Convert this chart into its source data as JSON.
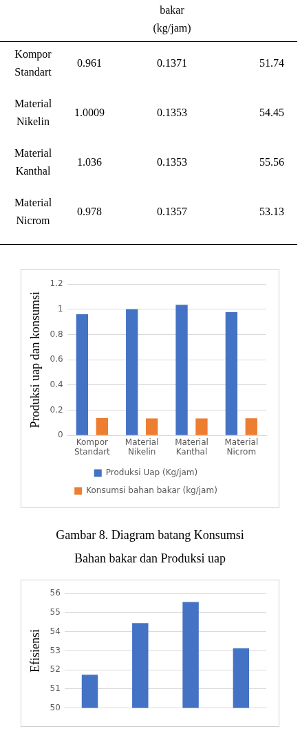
{
  "chart_data": [
    {
      "type": "other",
      "annotations": [
        "bakar\n(kg/jam)",
        "Kompor\nStandart",
        "0.961",
        "0.1371",
        "51.74",
        "Material\nNikelin",
        "1.0009",
        "0.1353",
        "54.45",
        "Material\nKanthal",
        "1.036",
        "0.1353",
        "55.56",
        "Material\nNicrom",
        "0.978",
        "0.1357",
        "53.13"
      ]
    },
    {
      "type": "bar",
      "categories": [
        "Kompor\nStandart",
        "Material\nNikelin",
        "Material\nKanthal",
        "Material\nNicrom"
      ],
      "ylabel": "Produksi uap dan konsumsi",
      "ylim": [
        0,
        1.2
      ],
      "yticks": [
        0,
        0.2,
        0.4,
        0.6,
        0.8,
        1,
        1.2
      ],
      "grid": "y",
      "legend": "bottom",
      "series": [
        {
          "name": "Produksi Uap (Kg/jam)",
          "color": "#4472c4",
          "values": [
            0.961,
            1.0009,
            1.036,
            0.978
          ]
        },
        {
          "name": "Konsumsi bahan bakar (kg/jam)",
          "color": "#ed7d31",
          "values": [
            0.1371,
            0.1353,
            0.1353,
            0.1357
          ]
        }
      ],
      "annotations": [
        "Gambar 8. Diagram batang Konsumsi\nBahan bakar dan Produksi uap"
      ]
    },
    {
      "type": "bar",
      "categories": [
        null,
        null,
        null,
        null
      ],
      "ylabel": "Efisiensi",
      "ylim": [
        50,
        56
      ],
      "yticks": [
        50,
        51,
        52,
        53,
        54,
        55,
        56
      ],
      "grid": "y",
      "values": [
        51.74,
        54.45,
        55.56,
        53.13
      ],
      "color": "#4472c4"
    }
  ]
}
